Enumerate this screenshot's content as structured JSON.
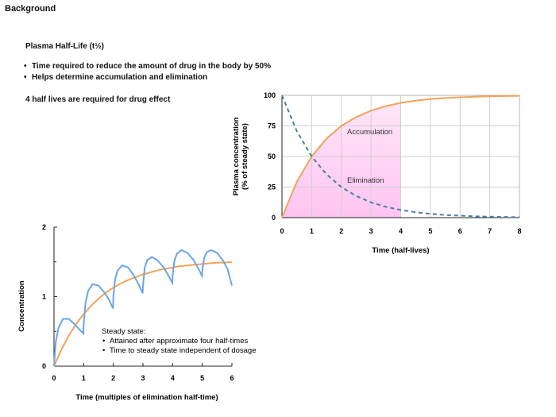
{
  "header": {
    "section_title": "Background",
    "subtitle": "Plasma Half-Life (t½)",
    "bullets": [
      "Time required to reduce the amount of drug in the body by 50%",
      "Helps determine accumulation and elimination"
    ],
    "note": "4 half lives are required for drug effect"
  },
  "chart_data": [
    {
      "type": "line",
      "title": "",
      "xlabel": "Time (half-lives)",
      "ylabel": "Plasma concentration (% of steady state)",
      "ylabel_lines": [
        "Plasma concentration",
        "(% of steady state)"
      ],
      "xlim": [
        0,
        8
      ],
      "ylim": [
        0,
        100
      ],
      "x_ticks": [
        0,
        1,
        2,
        3,
        4,
        5,
        6,
        7,
        8
      ],
      "y_ticks": [
        0,
        25,
        50,
        75,
        100
      ],
      "grid": true,
      "shaded_region": {
        "x": [
          0,
          4
        ],
        "color": "#ffc4f2"
      },
      "series": [
        {
          "name": "Accumulation",
          "style": "solid",
          "color": "#f5a25a",
          "x": [
            0,
            0.5,
            1,
            1.5,
            2,
            2.5,
            3,
            3.5,
            4,
            4.5,
            5,
            5.5,
            6,
            6.5,
            7,
            7.5,
            8
          ],
          "y": [
            0,
            29.3,
            50,
            64.6,
            75,
            82.3,
            87.5,
            91.2,
            93.8,
            95.6,
            96.9,
            97.8,
            98.4,
            98.9,
            99.2,
            99.4,
            99.6
          ]
        },
        {
          "name": "Elimination",
          "style": "dashed",
          "color": "#4a7fa6",
          "x": [
            0,
            0.5,
            1,
            1.5,
            2,
            2.5,
            3,
            3.5,
            4,
            4.5,
            5,
            5.5,
            6,
            6.5,
            7,
            7.5,
            8
          ],
          "y": [
            100,
            70.7,
            50,
            35.4,
            25,
            17.7,
            12.5,
            8.8,
            6.3,
            4.4,
            3.1,
            2.2,
            1.6,
            1.1,
            0.8,
            0.6,
            0.4
          ]
        }
      ]
    },
    {
      "type": "line",
      "title": "",
      "xlabel": "Time (multiples of elimination half-time)",
      "ylabel": "Concentration",
      "xlim": [
        0,
        6
      ],
      "ylim": [
        0,
        2
      ],
      "x_ticks": [
        0,
        1,
        2,
        3,
        4,
        5,
        6
      ],
      "y_ticks": [
        0,
        1,
        2
      ],
      "grid": false,
      "series": [
        {
          "name": "",
          "style": "solid",
          "color": "#f5a25a",
          "x": [
            0,
            0.25,
            0.5,
            0.75,
            1,
            1.25,
            1.5,
            1.75,
            2,
            2.25,
            2.5,
            2.75,
            3,
            3.25,
            3.5,
            3.75,
            4,
            4.25,
            4.5,
            4.75,
            5,
            5.25,
            5.5,
            5.75,
            6
          ],
          "y": [
            0,
            0.24,
            0.44,
            0.61,
            0.75,
            0.87,
            0.97,
            1.06,
            1.13,
            1.19,
            1.24,
            1.28,
            1.32,
            1.35,
            1.38,
            1.4,
            1.42,
            1.44,
            1.45,
            1.46,
            1.47,
            1.48,
            1.49,
            1.49,
            1.5
          ]
        },
        {
          "name": "",
          "style": "solid",
          "color": "#6aa5e8",
          "x": [
            0,
            0.06,
            0.15,
            0.3,
            0.5,
            0.7,
            0.85,
            0.99,
            1.0,
            1.06,
            1.15,
            1.3,
            1.5,
            1.7,
            1.85,
            1.99,
            2.0,
            2.06,
            2.15,
            2.3,
            2.5,
            2.7,
            2.85,
            2.99,
            3.0,
            3.06,
            3.15,
            3.3,
            3.5,
            3.7,
            3.85,
            3.99,
            4.0,
            4.06,
            4.15,
            4.3,
            4.5,
            4.7,
            4.85,
            4.99,
            5.0,
            5.06,
            5.15,
            5.3,
            5.5,
            5.7,
            5.85,
            6.0
          ],
          "y": [
            0,
            0.35,
            0.55,
            0.68,
            0.68,
            0.6,
            0.53,
            0.47,
            0.6,
            0.9,
            1.08,
            1.18,
            1.16,
            1.06,
            0.96,
            0.83,
            1.0,
            1.25,
            1.38,
            1.45,
            1.42,
            1.3,
            1.18,
            1.05,
            1.15,
            1.42,
            1.53,
            1.57,
            1.52,
            1.42,
            1.31,
            1.2,
            1.3,
            1.52,
            1.62,
            1.67,
            1.63,
            1.53,
            1.42,
            1.3,
            1.38,
            1.55,
            1.64,
            1.67,
            1.63,
            1.52,
            1.4,
            1.16
          ]
        }
      ],
      "annotation": {
        "title": "Steady state:",
        "bullets": [
          "Attained after approximate four half-times",
          "Time to steady state independent of dosage"
        ]
      }
    }
  ]
}
